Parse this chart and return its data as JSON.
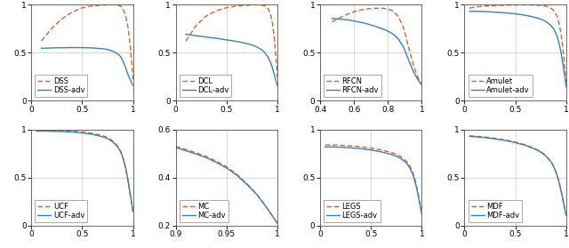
{
  "subplots": [
    {
      "legend": [
        "DSS-adv",
        "DSS"
      ],
      "xlim": [
        0,
        1
      ],
      "ylim": [
        0,
        1
      ],
      "xticks": [
        0,
        0.5,
        1
      ],
      "yticks": [
        0,
        0.5,
        1
      ],
      "xticklabels": [
        "0",
        "0.5",
        "1"
      ],
      "yticklabels": [
        "0",
        "0.5",
        "1"
      ],
      "adv_curve": {
        "x": [
          0.1,
          0.2,
          0.3,
          0.4,
          0.5,
          0.6,
          0.7,
          0.75,
          0.8,
          0.85,
          0.88,
          0.91,
          0.93,
          0.95,
          0.97,
          0.99,
          1.0
        ],
        "y": [
          0.545,
          0.548,
          0.55,
          0.552,
          0.551,
          0.548,
          0.54,
          0.532,
          0.515,
          0.488,
          0.455,
          0.39,
          0.335,
          0.275,
          0.225,
          0.175,
          0.16
        ]
      },
      "base_curve": {
        "x": [
          0.1,
          0.2,
          0.3,
          0.4,
          0.5,
          0.6,
          0.7,
          0.75,
          0.8,
          0.85,
          0.88,
          0.91,
          0.93,
          0.95,
          0.97,
          0.99,
          1.0
        ],
        "y": [
          0.62,
          0.75,
          0.85,
          0.92,
          0.965,
          0.985,
          0.993,
          0.996,
          0.997,
          0.993,
          0.982,
          0.935,
          0.875,
          0.77,
          0.6,
          0.38,
          0.22
        ]
      }
    },
    {
      "legend": [
        "DCL-adv",
        "DCL"
      ],
      "xlim": [
        0,
        1
      ],
      "ylim": [
        0,
        1
      ],
      "xticks": [
        0,
        0.5,
        1
      ],
      "yticks": [
        0,
        0.5,
        1
      ],
      "xticklabels": [
        "0",
        "0.5",
        "1"
      ],
      "yticklabels": [
        "0",
        "0.5",
        "1"
      ],
      "adv_curve": {
        "x": [
          0.1,
          0.2,
          0.3,
          0.4,
          0.5,
          0.6,
          0.7,
          0.75,
          0.8,
          0.85,
          0.88,
          0.91,
          0.93,
          0.95,
          0.97,
          0.99,
          1.0
        ],
        "y": [
          0.69,
          0.675,
          0.662,
          0.648,
          0.632,
          0.615,
          0.594,
          0.579,
          0.558,
          0.526,
          0.495,
          0.448,
          0.405,
          0.345,
          0.268,
          0.19,
          0.155
        ]
      },
      "base_curve": {
        "x": [
          0.1,
          0.2,
          0.3,
          0.4,
          0.5,
          0.6,
          0.7,
          0.75,
          0.8,
          0.85,
          0.88,
          0.91,
          0.93,
          0.95,
          0.97,
          0.99,
          1.0
        ],
        "y": [
          0.62,
          0.78,
          0.88,
          0.935,
          0.967,
          0.983,
          0.992,
          0.995,
          0.997,
          0.993,
          0.985,
          0.955,
          0.905,
          0.815,
          0.645,
          0.41,
          0.24
        ]
      }
    },
    {
      "legend": [
        "RFCN-adv",
        "RFCN"
      ],
      "xlim": [
        0.4,
        1.0
      ],
      "ylim": [
        0,
        1
      ],
      "xticks": [
        0.4,
        0.6,
        0.8,
        1.0
      ],
      "yticks": [
        0,
        0.5,
        1
      ],
      "xticklabels": [
        "0.4",
        "0.6",
        "0.8",
        "1"
      ],
      "yticklabels": [
        "0",
        "0.5",
        "1"
      ],
      "adv_curve": {
        "x": [
          0.47,
          0.52,
          0.57,
          0.62,
          0.67,
          0.72,
          0.77,
          0.8,
          0.83,
          0.86,
          0.89,
          0.91,
          0.93,
          0.95,
          0.97,
          0.99,
          1.0
        ],
        "y": [
          0.855,
          0.848,
          0.838,
          0.822,
          0.802,
          0.776,
          0.746,
          0.723,
          0.693,
          0.645,
          0.565,
          0.48,
          0.39,
          0.305,
          0.238,
          0.185,
          0.165
        ]
      },
      "base_curve": {
        "x": [
          0.47,
          0.52,
          0.57,
          0.62,
          0.67,
          0.72,
          0.77,
          0.8,
          0.83,
          0.86,
          0.89,
          0.91,
          0.93,
          0.95,
          0.97,
          0.99,
          1.0
        ],
        "y": [
          0.82,
          0.865,
          0.905,
          0.935,
          0.953,
          0.961,
          0.96,
          0.953,
          0.932,
          0.88,
          0.77,
          0.64,
          0.5,
          0.375,
          0.272,
          0.196,
          0.165
        ]
      }
    },
    {
      "legend": [
        "Amulet-adv",
        "Amulet"
      ],
      "xlim": [
        0,
        1
      ],
      "ylim": [
        0,
        1
      ],
      "xticks": [
        0,
        0.5,
        1
      ],
      "yticks": [
        0,
        0.5,
        1
      ],
      "xticklabels": [
        "0",
        "0.5",
        "1"
      ],
      "yticklabels": [
        "0",
        "0.5",
        "1"
      ],
      "adv_curve": {
        "x": [
          0.05,
          0.1,
          0.2,
          0.3,
          0.4,
          0.5,
          0.6,
          0.7,
          0.75,
          0.8,
          0.85,
          0.88,
          0.91,
          0.93,
          0.95,
          0.97,
          0.99,
          1.0
        ],
        "y": [
          0.928,
          0.93,
          0.926,
          0.92,
          0.913,
          0.903,
          0.888,
          0.864,
          0.848,
          0.823,
          0.782,
          0.742,
          0.672,
          0.598,
          0.498,
          0.368,
          0.228,
          0.145
        ]
      },
      "base_curve": {
        "x": [
          0.05,
          0.1,
          0.2,
          0.3,
          0.4,
          0.5,
          0.6,
          0.7,
          0.75,
          0.8,
          0.85,
          0.88,
          0.91,
          0.93,
          0.95,
          0.97,
          0.99,
          1.0
        ],
        "y": [
          0.962,
          0.973,
          0.983,
          0.989,
          0.993,
          0.995,
          0.996,
          0.994,
          0.991,
          0.983,
          0.962,
          0.935,
          0.878,
          0.805,
          0.692,
          0.52,
          0.315,
          0.175
        ]
      }
    },
    {
      "legend": [
        "UCF-adv",
        "UCF"
      ],
      "xlim": [
        0,
        1
      ],
      "ylim": [
        0,
        1
      ],
      "xticks": [
        0,
        0.5,
        1
      ],
      "yticks": [
        0,
        0.5,
        1
      ],
      "xticklabels": [
        "0",
        "0.5",
        "1"
      ],
      "yticklabels": [
        "0",
        "0.5",
        "1"
      ],
      "adv_curve": {
        "x": [
          0.05,
          0.1,
          0.2,
          0.3,
          0.4,
          0.5,
          0.6,
          0.7,
          0.75,
          0.8,
          0.85,
          0.88,
          0.91,
          0.93,
          0.95,
          0.97,
          0.99,
          1.0
        ],
        "y": [
          0.983,
          0.984,
          0.982,
          0.979,
          0.974,
          0.965,
          0.95,
          0.924,
          0.905,
          0.872,
          0.82,
          0.768,
          0.678,
          0.592,
          0.482,
          0.352,
          0.218,
          0.148
        ]
      },
      "base_curve": {
        "x": [
          0.05,
          0.1,
          0.2,
          0.3,
          0.4,
          0.5,
          0.6,
          0.7,
          0.75,
          0.8,
          0.85,
          0.88,
          0.91,
          0.93,
          0.95,
          0.97,
          0.99,
          1.0
        ],
        "y": [
          0.99,
          0.991,
          0.99,
          0.988,
          0.983,
          0.975,
          0.961,
          0.937,
          0.917,
          0.882,
          0.826,
          0.768,
          0.672,
          0.582,
          0.468,
          0.336,
          0.208,
          0.145
        ]
      }
    },
    {
      "legend": [
        "MC-adv",
        "MC"
      ],
      "xlim": [
        0.9,
        1.0
      ],
      "ylim": [
        0.2,
        0.6
      ],
      "xticks": [
        0.9,
        0.95,
        1.0
      ],
      "yticks": [
        0.2,
        0.4,
        0.6
      ],
      "xticklabels": [
        "0.9",
        "0.95",
        "1"
      ],
      "yticklabels": [
        "0.2",
        "0.4",
        "0.6"
      ],
      "adv_curve": {
        "x": [
          0.9,
          0.91,
          0.92,
          0.93,
          0.94,
          0.95,
          0.96,
          0.97,
          0.98,
          0.99,
          1.0
        ],
        "y": [
          0.525,
          0.512,
          0.498,
          0.483,
          0.463,
          0.44,
          0.41,
          0.372,
          0.328,
          0.272,
          0.21
        ]
      },
      "base_curve": {
        "x": [
          0.9,
          0.91,
          0.92,
          0.93,
          0.94,
          0.95,
          0.96,
          0.97,
          0.98,
          0.99,
          1.0
        ],
        "y": [
          0.53,
          0.517,
          0.503,
          0.488,
          0.468,
          0.445,
          0.414,
          0.375,
          0.33,
          0.272,
          0.21
        ]
      }
    },
    {
      "legend": [
        "LEGS-adv",
        "LEGS"
      ],
      "xlim": [
        0,
        1
      ],
      "ylim": [
        0,
        1
      ],
      "xticks": [
        0,
        0.5,
        1
      ],
      "yticks": [
        0,
        0.5,
        1
      ],
      "xticklabels": [
        "0",
        "0.5",
        "1"
      ],
      "yticklabels": [
        "0",
        "0.5",
        "1"
      ],
      "adv_curve": {
        "x": [
          0.05,
          0.1,
          0.2,
          0.3,
          0.4,
          0.5,
          0.6,
          0.7,
          0.75,
          0.8,
          0.85,
          0.88,
          0.91,
          0.93,
          0.95,
          0.97,
          0.99,
          1.0
        ],
        "y": [
          0.818,
          0.82,
          0.816,
          0.81,
          0.801,
          0.787,
          0.768,
          0.741,
          0.723,
          0.694,
          0.65,
          0.605,
          0.54,
          0.472,
          0.388,
          0.285,
          0.178,
          0.12
        ]
      },
      "base_curve": {
        "x": [
          0.05,
          0.1,
          0.2,
          0.3,
          0.4,
          0.5,
          0.6,
          0.7,
          0.75,
          0.8,
          0.85,
          0.88,
          0.91,
          0.93,
          0.95,
          0.97,
          0.99,
          1.0
        ],
        "y": [
          0.838,
          0.84,
          0.836,
          0.83,
          0.821,
          0.807,
          0.788,
          0.761,
          0.743,
          0.714,
          0.67,
          0.625,
          0.56,
          0.492,
          0.405,
          0.298,
          0.185,
          0.12
        ]
      }
    },
    {
      "legend": [
        "MDF-adv",
        "MDF"
      ],
      "xlim": [
        0,
        1
      ],
      "ylim": [
        0,
        1
      ],
      "xticks": [
        0,
        0.5,
        1
      ],
      "yticks": [
        0,
        0.5,
        1
      ],
      "xticklabels": [
        "0",
        "0.5",
        "1"
      ],
      "yticklabels": [
        "0",
        "0.5",
        "1"
      ],
      "adv_curve": {
        "x": [
          0.05,
          0.1,
          0.2,
          0.3,
          0.4,
          0.5,
          0.6,
          0.7,
          0.75,
          0.8,
          0.85,
          0.88,
          0.91,
          0.93,
          0.95,
          0.97,
          0.99,
          1.0
        ],
        "y": [
          0.928,
          0.925,
          0.916,
          0.903,
          0.886,
          0.864,
          0.835,
          0.793,
          0.765,
          0.724,
          0.665,
          0.607,
          0.528,
          0.452,
          0.362,
          0.258,
          0.158,
          0.108
        ]
      },
      "base_curve": {
        "x": [
          0.05,
          0.1,
          0.2,
          0.3,
          0.4,
          0.5,
          0.6,
          0.7,
          0.75,
          0.8,
          0.85,
          0.88,
          0.91,
          0.93,
          0.95,
          0.97,
          0.99,
          1.0
        ],
        "y": [
          0.934,
          0.931,
          0.922,
          0.908,
          0.891,
          0.869,
          0.84,
          0.798,
          0.77,
          0.729,
          0.67,
          0.612,
          0.533,
          0.457,
          0.367,
          0.263,
          0.161,
          0.11
        ]
      }
    }
  ],
  "adv_color": "#3a80be",
  "base_color": "#d4622a",
  "adv_linestyle": "solid",
  "base_linestyle": "dashed",
  "linewidth": 1.0,
  "legend_fontsize": 6.0,
  "tick_fontsize": 6.5,
  "grid_color": "#c8c8c8"
}
